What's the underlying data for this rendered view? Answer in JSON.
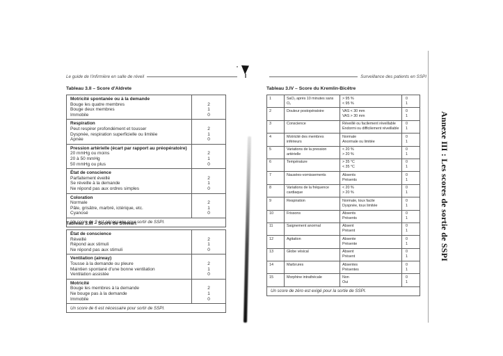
{
  "colors": {
    "paper": "#ffffff",
    "ink": "#2e2e2e",
    "table_border": "#5d5d5d",
    "gutter_shadow": "#0e0e0e",
    "page_edge_line": "#a3a3a3"
  },
  "page_left": {
    "running_header": "Le guide de l'infirmière en salle de réveil",
    "tables": [
      {
        "title": "Tableau 3.II – Score d'Aldrete",
        "sections": [
          {
            "header": "Motricité spontanée ou à la demande",
            "items": [
              [
                "Bouge les quatre membres",
                "2"
              ],
              [
                "Bouge deux membres",
                "1"
              ],
              [
                "Immobile",
                "0"
              ]
            ]
          },
          {
            "header": "Respiration",
            "items": [
              [
                "Peut respirer profondément et tousser",
                "2"
              ],
              [
                "Dyspnée, respiration superficielle ou limitée",
                "1"
              ],
              [
                "Apnée",
                "0"
              ]
            ]
          },
          {
            "header": "Pression artérielle (écart par rapport au préopératoire)",
            "items": [
              [
                "20 mmHg ou moins",
                "2"
              ],
              [
                "20 à 50 mmHg",
                "1"
              ],
              [
                "50 mmHg ou plus",
                "0"
              ]
            ]
          },
          {
            "header": "État de conscience",
            "items": [
              [
                "Parfaitement éveillé",
                "2"
              ],
              [
                "Se réveille à la demande",
                "1"
              ],
              [
                "Ne répond pas aux ordres simples",
                "0"
              ]
            ]
          },
          {
            "header": "Coloration",
            "items": [
              [
                "Normale",
                "2"
              ],
              [
                "Pâle, grisâtre, marbré, ictérique, etc.",
                "1"
              ],
              [
                "Cyanosé",
                "0"
              ]
            ]
          }
        ],
        "footnote": "Un score de 9 est nécessaire pour sortir de SSPI."
      },
      {
        "title": "Tableau 3.III – Score de Stewart",
        "sections": [
          {
            "header": "État de conscience",
            "items": [
              [
                "Réveillé",
                "2"
              ],
              [
                "Répond aux stimuli",
                "1"
              ],
              [
                "Ne répond pas aux stimuli",
                "0"
              ]
            ]
          },
          {
            "header": "Ventilation (airway)",
            "items": [
              [
                "Tousse à la demande ou pleure",
                "2"
              ],
              [
                "Maintien spontané d'une bonne ventilation",
                "1"
              ],
              [
                "Ventilation assistée",
                "0"
              ]
            ]
          },
          {
            "header": "Motricité",
            "items": [
              [
                "Bouge les membres à la demande",
                "2"
              ],
              [
                "Ne bouge pas à la demande",
                "1"
              ],
              [
                "Immobile",
                "0"
              ]
            ]
          }
        ],
        "footnote": "Un score de 6 est nécessaire pour sortir de SSPI."
      }
    ]
  },
  "page_right": {
    "running_header": "Surveillance des patients en SSPI",
    "table": {
      "title": "Tableau 3.IV – Score du Kremlin-Bicêtre",
      "rows": [
        {
          "num": "1",
          "criterion": "SaO₂ après 10 minutes sans O₂",
          "values": [
            "> 95 %",
            "< 95 %"
          ],
          "scores": [
            "0",
            "1"
          ]
        },
        {
          "num": "2",
          "criterion": "Douleur postopératoire",
          "values": [
            "VAS < 30 mm",
            "VAS > 30 mm"
          ],
          "scores": [
            "0",
            "1"
          ]
        },
        {
          "num": "3",
          "criterion": "Conscience",
          "values": [
            "Réveillé ou facilement réveillable",
            "Endormi ou difficilement réveillable"
          ],
          "scores": [
            "0",
            "1"
          ]
        },
        {
          "num": "4",
          "criterion": "Motricité des membres inférieurs",
          "values": [
            "Normale",
            "Anormale ou limitée"
          ],
          "scores": [
            "0",
            "1"
          ]
        },
        {
          "num": "5",
          "criterion": "Variations de la pression artérielle",
          "values": [
            "< 20 %",
            "> 20 %"
          ],
          "scores": [
            "0",
            "1"
          ]
        },
        {
          "num": "6",
          "criterion": "Température",
          "values": [
            "> 35 °C",
            "< 35 °C"
          ],
          "scores": [
            "0",
            "1"
          ]
        },
        {
          "num": "7",
          "criterion": "Nausées-vomissements",
          "values": [
            "Absents",
            "Présents"
          ],
          "scores": [
            "0",
            "1"
          ]
        },
        {
          "num": "8",
          "criterion": "Variations de la fréquence cardiaque",
          "values": [
            "< 20 %",
            "> 20 %"
          ],
          "scores": [
            "0",
            "1"
          ]
        },
        {
          "num": "9",
          "criterion": "Respiration",
          "values": [
            "Normale, toux facile",
            "Dyspnée, toux limitée"
          ],
          "scores": [
            "0",
            "1"
          ]
        },
        {
          "num": "10",
          "criterion": "Frissons",
          "values": [
            "Absents",
            "Présents"
          ],
          "scores": [
            "0",
            "1"
          ]
        },
        {
          "num": "11",
          "criterion": "Saignement anormal",
          "values": [
            "Absent",
            "Présent"
          ],
          "scores": [
            "0",
            "1"
          ]
        },
        {
          "num": "12",
          "criterion": "Agitation",
          "values": [
            "Absente",
            "Présente"
          ],
          "scores": [
            "0",
            "1"
          ]
        },
        {
          "num": "13",
          "criterion": "Globe vésical",
          "values": [
            "Absent",
            "Présent"
          ],
          "scores": [
            "0",
            "1"
          ]
        },
        {
          "num": "14",
          "criterion": "Marbrures",
          "values": [
            "Absentes",
            "Présentes"
          ],
          "scores": [
            "0",
            "1"
          ]
        },
        {
          "num": "15",
          "criterion": "Morphine intrathécale",
          "values": [
            "Non",
            "Oui"
          ],
          "scores": [
            "0",
            "1"
          ]
        }
      ],
      "footnote": "Un score de zéro est exigé pour la sortie de SSPI."
    }
  },
  "sidebar": {
    "annex_title": "Annexe III : Les scores de sortie de SSPI"
  }
}
